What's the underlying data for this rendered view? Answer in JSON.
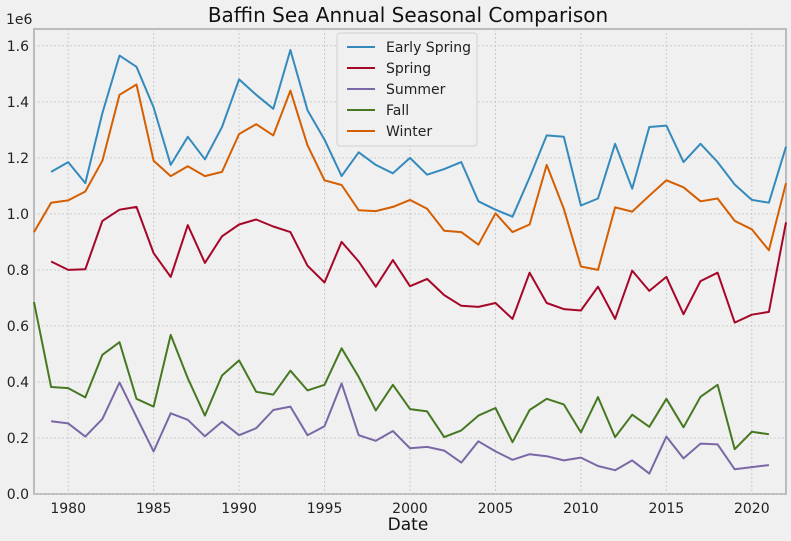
{
  "chart_data": {
    "type": "line",
    "title": "Baffin Sea Annual Seasonal Comparison",
    "xlabel": "Date",
    "ylabel": "",
    "y_offset_label": "1e6",
    "xlim": [
      1978,
      2022
    ],
    "ylim": [
      0,
      1660000
    ],
    "x_ticks": [
      1980,
      1985,
      1990,
      1995,
      2000,
      2005,
      2010,
      2015,
      2020
    ],
    "y_ticks": [
      0,
      200000,
      400000,
      600000,
      800000,
      1000000,
      1200000,
      1400000,
      1600000
    ],
    "y_tick_labels": [
      "0.0",
      "0.2",
      "0.4",
      "0.6",
      "0.8",
      "1.0",
      "1.2",
      "1.4",
      "1.6"
    ],
    "grid": true,
    "legend_position": "top-center",
    "series": [
      {
        "name": "Early Spring",
        "color": "#348abd",
        "points": [
          [
            1979,
            1150000
          ],
          [
            1980,
            1185000
          ],
          [
            1981,
            1110000
          ],
          [
            1982,
            1360000
          ],
          [
            1983,
            1565000
          ],
          [
            1984,
            1525000
          ],
          [
            1985,
            1380000
          ],
          [
            1986,
            1175000
          ],
          [
            1987,
            1275000
          ],
          [
            1988,
            1195000
          ],
          [
            1989,
            1310000
          ],
          [
            1990,
            1480000
          ],
          [
            1991,
            1425000
          ],
          [
            1992,
            1375000
          ],
          [
            1993,
            1585000
          ],
          [
            1994,
            1370000
          ],
          [
            1995,
            1265000
          ],
          [
            1996,
            1135000
          ],
          [
            1997,
            1220000
          ],
          [
            1998,
            1175000
          ],
          [
            1999,
            1145000
          ],
          [
            2000,
            1200000
          ],
          [
            2001,
            1140000
          ],
          [
            2002,
            1160000
          ],
          [
            2003,
            1185000
          ],
          [
            2004,
            1045000
          ],
          [
            2005,
            1015000
          ],
          [
            2006,
            990000
          ],
          [
            2007,
            1130000
          ],
          [
            2008,
            1280000
          ],
          [
            2009,
            1275000
          ],
          [
            2010,
            1030000
          ],
          [
            2011,
            1055000
          ],
          [
            2012,
            1250000
          ],
          [
            2013,
            1090000
          ],
          [
            2014,
            1310000
          ],
          [
            2015,
            1315000
          ],
          [
            2016,
            1185000
          ],
          [
            2017,
            1250000
          ],
          [
            2018,
            1185000
          ],
          [
            2019,
            1105000
          ],
          [
            2020,
            1050000
          ],
          [
            2021,
            1040000
          ],
          [
            2022,
            1240000
          ]
        ]
      },
      {
        "name": "Spring",
        "color": "#a60628",
        "points": [
          [
            1979,
            830000
          ],
          [
            1980,
            800000
          ],
          [
            1981,
            802000
          ],
          [
            1982,
            975000
          ],
          [
            1983,
            1015000
          ],
          [
            1984,
            1025000
          ],
          [
            1985,
            860000
          ],
          [
            1986,
            775000
          ],
          [
            1987,
            960000
          ],
          [
            1988,
            825000
          ],
          [
            1989,
            920000
          ],
          [
            1990,
            962000
          ],
          [
            1991,
            980000
          ],
          [
            1992,
            955000
          ],
          [
            1993,
            935000
          ],
          [
            1994,
            815000
          ],
          [
            1995,
            755000
          ],
          [
            1996,
            900000
          ],
          [
            1997,
            830000
          ],
          [
            1998,
            740000
          ],
          [
            1999,
            835000
          ],
          [
            2000,
            742000
          ],
          [
            2001,
            768000
          ],
          [
            2002,
            710000
          ],
          [
            2003,
            672000
          ],
          [
            2004,
            668000
          ],
          [
            2005,
            682000
          ],
          [
            2006,
            625000
          ],
          [
            2007,
            790000
          ],
          [
            2008,
            682000
          ],
          [
            2009,
            660000
          ],
          [
            2010,
            655000
          ],
          [
            2011,
            740000
          ],
          [
            2012,
            625000
          ],
          [
            2013,
            797000
          ],
          [
            2014,
            725000
          ],
          [
            2015,
            775000
          ],
          [
            2016,
            642000
          ],
          [
            2017,
            760000
          ],
          [
            2018,
            790000
          ],
          [
            2019,
            612000
          ],
          [
            2020,
            640000
          ],
          [
            2021,
            650000
          ],
          [
            2022,
            970000
          ]
        ]
      },
      {
        "name": "Summer",
        "color": "#7a68a6",
        "points": [
          [
            1979,
            260000
          ],
          [
            1980,
            252000
          ],
          [
            1981,
            205000
          ],
          [
            1982,
            268000
          ],
          [
            1983,
            398000
          ],
          [
            1984,
            275000
          ],
          [
            1985,
            152000
          ],
          [
            1986,
            288000
          ],
          [
            1987,
            265000
          ],
          [
            1988,
            206000
          ],
          [
            1989,
            258000
          ],
          [
            1990,
            210000
          ],
          [
            1991,
            235000
          ],
          [
            1992,
            300000
          ],
          [
            1993,
            312000
          ],
          [
            1994,
            210000
          ],
          [
            1995,
            242000
          ],
          [
            1996,
            395000
          ],
          [
            1997,
            210000
          ],
          [
            1998,
            190000
          ],
          [
            1999,
            225000
          ],
          [
            2000,
            163000
          ],
          [
            2001,
            168000
          ],
          [
            2002,
            155000
          ],
          [
            2003,
            112000
          ],
          [
            2004,
            188000
          ],
          [
            2005,
            152000
          ],
          [
            2006,
            122000
          ],
          [
            2007,
            142000
          ],
          [
            2008,
            135000
          ],
          [
            2009,
            120000
          ],
          [
            2010,
            130000
          ],
          [
            2011,
            100000
          ],
          [
            2012,
            85000
          ],
          [
            2013,
            120000
          ],
          [
            2014,
            73000
          ],
          [
            2015,
            205000
          ],
          [
            2016,
            127000
          ],
          [
            2017,
            180000
          ],
          [
            2018,
            177000
          ],
          [
            2019,
            88000
          ],
          [
            2020,
            96000
          ],
          [
            2021,
            103000
          ]
        ]
      },
      {
        "name": "Fall",
        "color": "#467821",
        "points": [
          [
            1978,
            685000
          ],
          [
            1979,
            382000
          ],
          [
            1980,
            378000
          ],
          [
            1981,
            345000
          ],
          [
            1982,
            497000
          ],
          [
            1983,
            542000
          ],
          [
            1984,
            340000
          ],
          [
            1985,
            312000
          ],
          [
            1986,
            568000
          ],
          [
            1987,
            413000
          ],
          [
            1988,
            280000
          ],
          [
            1989,
            423000
          ],
          [
            1990,
            477000
          ],
          [
            1991,
            365000
          ],
          [
            1992,
            355000
          ],
          [
            1993,
            440000
          ],
          [
            1994,
            370000
          ],
          [
            1995,
            390000
          ],
          [
            1996,
            520000
          ],
          [
            1997,
            418000
          ],
          [
            1998,
            298000
          ],
          [
            1999,
            390000
          ],
          [
            2000,
            303000
          ],
          [
            2001,
            295000
          ],
          [
            2002,
            203000
          ],
          [
            2003,
            227000
          ],
          [
            2004,
            280000
          ],
          [
            2005,
            307000
          ],
          [
            2006,
            185000
          ],
          [
            2007,
            300000
          ],
          [
            2008,
            340000
          ],
          [
            2009,
            320000
          ],
          [
            2010,
            220000
          ],
          [
            2011,
            346000
          ],
          [
            2012,
            203000
          ],
          [
            2013,
            283000
          ],
          [
            2014,
            240000
          ],
          [
            2015,
            340000
          ],
          [
            2016,
            238000
          ],
          [
            2017,
            347000
          ],
          [
            2018,
            390000
          ],
          [
            2019,
            160000
          ],
          [
            2020,
            222000
          ],
          [
            2021,
            213000
          ]
        ]
      },
      {
        "name": "Winter",
        "color": "#d55e00",
        "points": [
          [
            1978,
            935000
          ],
          [
            1979,
            1040000
          ],
          [
            1980,
            1048000
          ],
          [
            1981,
            1080000
          ],
          [
            1982,
            1190000
          ],
          [
            1983,
            1425000
          ],
          [
            1984,
            1462000
          ],
          [
            1985,
            1190000
          ],
          [
            1986,
            1135000
          ],
          [
            1987,
            1170000
          ],
          [
            1988,
            1135000
          ],
          [
            1989,
            1150000
          ],
          [
            1990,
            1285000
          ],
          [
            1991,
            1320000
          ],
          [
            1992,
            1280000
          ],
          [
            1993,
            1440000
          ],
          [
            1994,
            1245000
          ],
          [
            1995,
            1120000
          ],
          [
            1996,
            1103000
          ],
          [
            1997,
            1013000
          ],
          [
            1998,
            1010000
          ],
          [
            1999,
            1025000
          ],
          [
            2000,
            1050000
          ],
          [
            2001,
            1018000
          ],
          [
            2002,
            940000
          ],
          [
            2003,
            935000
          ],
          [
            2004,
            890000
          ],
          [
            2005,
            1002000
          ],
          [
            2006,
            935000
          ],
          [
            2007,
            962000
          ],
          [
            2008,
            1175000
          ],
          [
            2009,
            1018000
          ],
          [
            2010,
            812000
          ],
          [
            2011,
            800000
          ],
          [
            2012,
            1023000
          ],
          [
            2013,
            1008000
          ],
          [
            2014,
            1065000
          ],
          [
            2015,
            1120000
          ],
          [
            2016,
            1095000
          ],
          [
            2017,
            1045000
          ],
          [
            2018,
            1055000
          ],
          [
            2019,
            975000
          ],
          [
            2020,
            945000
          ],
          [
            2021,
            870000
          ],
          [
            2022,
            1110000
          ]
        ]
      }
    ]
  }
}
